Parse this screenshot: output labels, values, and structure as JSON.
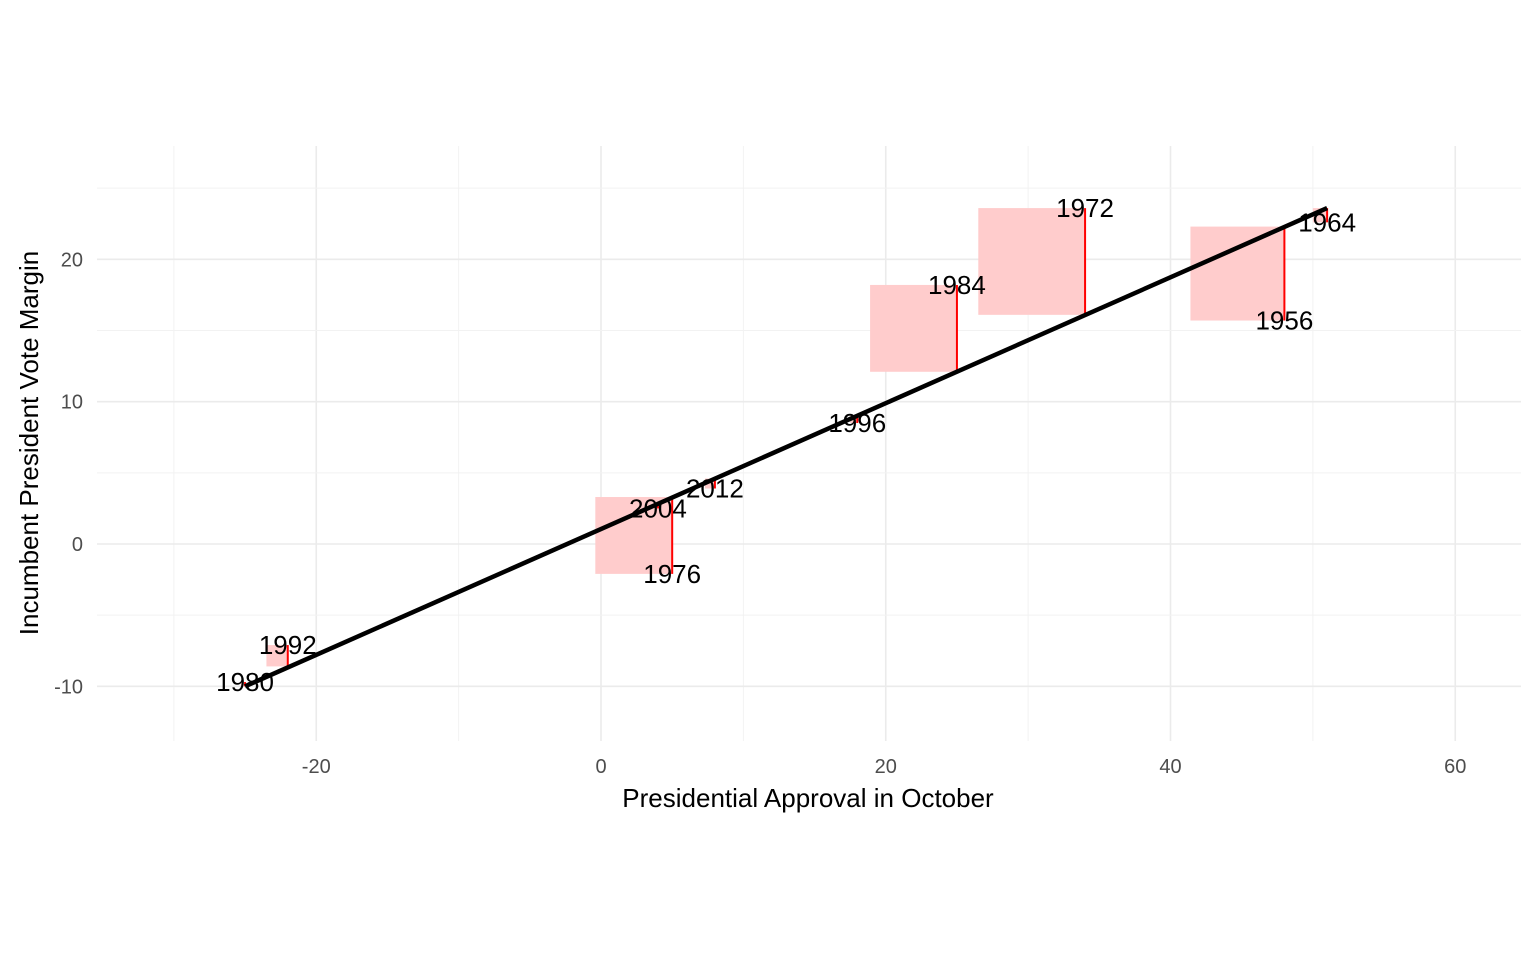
{
  "chart_data": {
    "type": "scatter",
    "title": "",
    "xlabel": "Presidential Approval in October",
    "ylabel": "Incumbent President Vote Margin",
    "xlim": [
      -30,
      64
    ],
    "ylim": [
      -14,
      28
    ],
    "x_ticks": [
      -20,
      0,
      20,
      40,
      60
    ],
    "x_tick_labels": [
      "-20",
      "0",
      "20",
      "40",
      "60"
    ],
    "y_ticks": [
      -10,
      0,
      10,
      20
    ],
    "y_tick_labels": [
      "-10",
      "0",
      "10",
      "20"
    ],
    "grid": true,
    "legend": "none",
    "fit_line": {
      "from": [
        -25,
        -10.0
      ],
      "to": [
        51,
        23.6
      ],
      "color": "#000000"
    },
    "residual_color": "#ff0000",
    "square_fill": "#ffcccc",
    "points": [
      {
        "year": "1956",
        "x": 48,
        "y": 15.7,
        "fitted": 22.3
      },
      {
        "year": "1964",
        "x": 51,
        "y": 22.6,
        "fitted": 23.6
      },
      {
        "year": "1972",
        "x": 34,
        "y": 23.6,
        "fitted": 16.1
      },
      {
        "year": "1976",
        "x": 5,
        "y": -2.1,
        "fitted": 3.3
      },
      {
        "year": "1980",
        "x": -25,
        "y": -9.7,
        "fitted": -10.0
      },
      {
        "year": "1984",
        "x": 25,
        "y": 18.2,
        "fitted": 12.1
      },
      {
        "year": "1992",
        "x": -22,
        "y": -7.1,
        "fitted": -8.6
      },
      {
        "year": "1996",
        "x": 18,
        "y": 8.5,
        "fitted": 9.0
      },
      {
        "year": "2004",
        "x": 4,
        "y": 2.5,
        "fitted": 2.8
      },
      {
        "year": "2012",
        "x": 8,
        "y": 3.9,
        "fitted": 4.6
      }
    ]
  }
}
